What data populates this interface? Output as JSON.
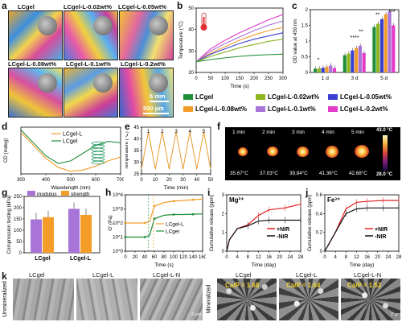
{
  "panel_labels": {
    "a": "a",
    "b": "b",
    "c": "c",
    "d": "d",
    "e": "e",
    "f": "f",
    "g": "g",
    "h": "h",
    "i": "i",
    "j": "j",
    "k": "k"
  },
  "panel_a": {
    "tiles": [
      "LCgel",
      "LCgel-L-0.02wt%",
      "LCgel-L-0.05wt%",
      "LCgel-L-0.08wt%",
      "LCgel-L-0.1wt%",
      "LCgel-L-0.2wt%"
    ],
    "scale_top": "5 mm",
    "scale_bottom": "500 μm"
  },
  "legend_bc": [
    "LCgel",
    "LCgel-L-0.02wt%",
    "LCgel-L-0.05wt%",
    "LCgel-L-0.08wt%",
    "LCgel-L-0.1wt%",
    "LCgel-L-0.2wt%"
  ],
  "series_colors": [
    "#1f8f3a",
    "#8cb520",
    "#3a3fd1",
    "#f39c2a",
    "#a874d8",
    "#e23bc8"
  ],
  "chart_data": [
    {
      "panel": "b",
      "type": "line",
      "xlabel": "Time (s)",
      "ylabel": "Temperature (°C)",
      "xlim": [
        0,
        300
      ],
      "ylim": [
        20,
        50
      ],
      "xticks": [
        0,
        50,
        100,
        150,
        200,
        250,
        300
      ],
      "yticks": [
        20,
        30,
        40,
        50
      ],
      "x": [
        0,
        50,
        100,
        150,
        200,
        250,
        300
      ],
      "series": [
        {
          "name": "LCgel-L-0.2wt%",
          "values": [
            25,
            31,
            35,
            38.5,
            41.5,
            44.5,
            47
          ]
        },
        {
          "name": "LCgel-L-0.1wt%",
          "values": [
            25,
            30,
            33.5,
            36.5,
            39.5,
            42,
            44
          ]
        },
        {
          "name": "LCgel-L-0.08wt%",
          "values": [
            25,
            29,
            32,
            35,
            37.5,
            39.5,
            41
          ]
        },
        {
          "name": "LCgel-L-0.05wt%",
          "values": [
            25,
            28.5,
            31,
            33.5,
            35.5,
            37,
            38.5
          ]
        },
        {
          "name": "LCgel-L-0.02wt%",
          "values": [
            25,
            27.5,
            29.5,
            31.5,
            33,
            34.5,
            35.5
          ]
        },
        {
          "name": "LCgel",
          "values": [
            25,
            26,
            26.8,
            27.5,
            28,
            28.3,
            28.5
          ]
        }
      ]
    },
    {
      "panel": "c",
      "type": "bar",
      "ylabel": "OD value at 450 nm",
      "ylim": [
        0,
        2.0
      ],
      "yticks": [
        0,
        0.5,
        1.0,
        1.5,
        2.0
      ],
      "categories": [
        "1 d",
        "3 d",
        "5 d"
      ],
      "series": [
        {
          "name": "LCgel",
          "values": [
            0.12,
            0.55,
            1.45
          ]
        },
        {
          "name": "LCgel-L-0.02wt%",
          "values": [
            0.13,
            0.6,
            1.55
          ]
        },
        {
          "name": "LCgel-L-0.05wt%",
          "values": [
            0.15,
            0.7,
            1.7
          ]
        },
        {
          "name": "LCgel-L-0.08wt%",
          "values": [
            0.18,
            0.78,
            1.85
          ]
        },
        {
          "name": "LCgel-L-0.1wt%",
          "values": [
            0.22,
            0.85,
            1.95
          ]
        },
        {
          "name": "LCgel-L-0.2wt%",
          "values": [
            0.14,
            0.62,
            1.5
          ]
        }
      ],
      "annotations": [
        "*",
        "****",
        "**",
        "**",
        "***"
      ]
    },
    {
      "panel": "d",
      "type": "line",
      "xlabel": "Wavelength (nm)",
      "ylabel": "CD (mdeg)",
      "xlim": [
        300,
        700
      ],
      "xticks": [
        300,
        400,
        500,
        600,
        700
      ],
      "x": [
        300,
        350,
        400,
        450,
        500,
        550,
        600,
        650,
        700
      ],
      "series": [
        {
          "name": "LCgel-L",
          "values": [
            18,
            8,
            -2,
            -9,
            -12,
            -11,
            -8,
            -4,
            -1
          ]
        },
        {
          "name": "LCgel",
          "values": [
            20,
            10,
            0,
            -6,
            -4,
            2,
            8,
            11,
            10
          ]
        }
      ]
    },
    {
      "panel": "e",
      "type": "line",
      "xlabel": "Time (min)",
      "ylabel": "Temperature (°C)",
      "xlim": [
        0,
        50
      ],
      "ylim": [
        25,
        45
      ],
      "xticks": [
        0,
        10,
        20,
        30,
        40,
        50
      ],
      "yticks": [
        25,
        30,
        35,
        40,
        45
      ],
      "cycle_labels": [
        "1",
        "2",
        "3",
        "4",
        "5"
      ],
      "x": [
        0,
        5,
        10,
        15,
        20,
        25,
        30,
        35,
        40,
        45,
        50
      ],
      "series": [
        {
          "name": "",
          "values": [
            27,
            43,
            27,
            43,
            27,
            43,
            27,
            43,
            27,
            43,
            27
          ]
        }
      ]
    },
    {
      "panel": "g",
      "type": "bar",
      "ylabel": "Compression testing (kPa)",
      "ylim": [
        0,
        250
      ],
      "yticks": [
        0,
        50,
        100,
        150,
        200,
        250
      ],
      "categories": [
        "LCgel",
        "LCgel-L"
      ],
      "series": [
        {
          "name": "modulus",
          "values": [
            148,
            195
          ]
        },
        {
          "name": "strength",
          "values": [
            158,
            168
          ]
        }
      ]
    },
    {
      "panel": "h",
      "type": "line",
      "xlabel": "Time (s)",
      "ylabel": "G' (Pa)",
      "xlim": [
        0,
        160
      ],
      "xticks": [
        0,
        20,
        40,
        60,
        80,
        100,
        120,
        140,
        160
      ],
      "ytick_labels": [
        "10^0",
        "10^1",
        "10^2",
        "10^3",
        "10^4"
      ],
      "x": [
        0,
        20,
        40,
        50,
        60,
        80,
        100,
        120,
        140,
        160
      ],
      "series": [
        {
          "name": "LCgel-L",
          "values": [
            2.0,
            2.0,
            2.0,
            2.1,
            3.2,
            3.45,
            3.55,
            3.6,
            3.65,
            3.7
          ]
        },
        {
          "name": "LCgel",
          "values": [
            1.0,
            1.0,
            1.0,
            1.1,
            2.3,
            2.55,
            2.6,
            2.6,
            2.62,
            2.65
          ]
        }
      ]
    },
    {
      "panel": "i",
      "type": "line",
      "title": "Mg²⁺",
      "xlabel": "Time (day)",
      "ylabel": "Cumulative release (ppm)",
      "xlim": [
        0,
        28
      ],
      "ylim": [
        0,
        3
      ],
      "xticks": [
        0,
        4,
        8,
        12,
        16,
        20,
        24,
        28
      ],
      "yticks": [
        0,
        1,
        2,
        3
      ],
      "x": [
        0,
        1,
        4,
        8,
        12,
        16,
        22,
        28
      ],
      "series": [
        {
          "name": "+NIR",
          "values": [
            0,
            0.6,
            1.2,
            1.4,
            1.9,
            2.2,
            2.3,
            2.5
          ]
        },
        {
          "name": "-NIR",
          "values": [
            0,
            0.6,
            1.2,
            1.35,
            1.6,
            1.65,
            1.65,
            1.65
          ]
        }
      ]
    },
    {
      "panel": "j",
      "type": "line",
      "title": "Fe³⁺",
      "xlabel": "Time (day)",
      "ylabel": "Cumulative release (ppm)",
      "xlim": [
        0,
        28
      ],
      "ylim": [
        0,
        0.6
      ],
      "xticks": [
        0,
        4,
        8,
        12,
        16,
        20,
        24,
        28
      ],
      "yticks": [
        0,
        0.2,
        0.4,
        0.6
      ],
      "x": [
        0,
        1,
        4,
        8,
        12,
        16,
        22,
        28
      ],
      "series": [
        {
          "name": "+NIR",
          "values": [
            0,
            0.05,
            0.2,
            0.45,
            0.52,
            0.53,
            0.54,
            0.54
          ]
        },
        {
          "name": "-NIR",
          "values": [
            0,
            0.05,
            0.2,
            0.4,
            0.45,
            0.46,
            0.46,
            0.46
          ]
        }
      ]
    }
  ],
  "panel_c_days": [
    "1 d",
    "3 d",
    "5 d"
  ],
  "panel_f": {
    "times": [
      "1 min",
      "2 min",
      "3 min",
      "4 min",
      "5 min"
    ],
    "temps": [
      "35.67°C",
      "37.03°C",
      "39.84°C",
      "41.36°C",
      "42.68°C"
    ],
    "scale_max": "43.0 °C",
    "scale_min": "28.0 °C"
  },
  "panel_k": {
    "row_unmin": "Unmineralized",
    "row_min": "Mineralized",
    "labels": [
      "LCgel",
      "LCgel-L",
      "LCgel-L-N"
    ],
    "ratios": [
      "Ca/P = 1.68",
      "Ca/P = 1.64",
      "Ca/P = 1.53"
    ],
    "scale": "2 μm"
  }
}
